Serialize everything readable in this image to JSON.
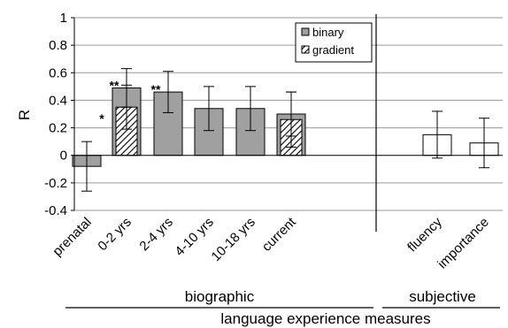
{
  "chart_data": {
    "type": "bar",
    "ylabel": "R",
    "ylim": [
      -0.4,
      1
    ],
    "yticks": [
      -0.4,
      -0.2,
      0,
      0.2,
      0.4,
      0.6,
      0.8,
      1
    ],
    "ytick_labels": [
      "-0.4",
      "-0.2",
      "0",
      "0.2",
      "0.4",
      "0.6",
      "0.8",
      "1"
    ],
    "grid": true,
    "legend_position": "top-right of left panel",
    "categories": [
      "prenatal",
      "0-2 yrs",
      "2-4 yrs",
      "4-10 yrs",
      "10-18 yrs",
      "current",
      "fluency",
      "importance"
    ],
    "series": [
      {
        "name": "binary",
        "color": "#a0a0a0",
        "pattern": "solid",
        "values": [
          -0.08,
          0.49,
          0.46,
          0.34,
          0.34,
          0.3,
          null,
          null
        ],
        "error": [
          0.18,
          0.14,
          0.15,
          0.16,
          0.16,
          0.16,
          null,
          null
        ]
      },
      {
        "name": "gradient",
        "color": "#ffffff",
        "pattern": "hatched",
        "values": [
          null,
          0.35,
          null,
          null,
          null,
          0.26,
          null,
          null
        ],
        "error": [
          null,
          0.16,
          null,
          null,
          null,
          0.2,
          null,
          null
        ]
      },
      {
        "color": "#ffffff",
        "pattern": "outline",
        "values": [
          null,
          null,
          null,
          null,
          null,
          null,
          0.15,
          0.09
        ],
        "error": [
          null,
          null,
          null,
          null,
          null,
          null,
          0.17,
          0.18
        ]
      }
    ],
    "annotations": [
      {
        "text": "**",
        "category": "0-2 yrs",
        "series": "binary"
      },
      {
        "text": "*",
        "category": "0-2 yrs",
        "series": "gradient"
      },
      {
        "text": "**",
        "category": "2-4 yrs",
        "series": "binary"
      }
    ],
    "groups": [
      {
        "label": "biographic",
        "categories": [
          "prenatal",
          "0-2 yrs",
          "2-4 yrs",
          "4-10 yrs",
          "10-18 yrs",
          "current"
        ]
      },
      {
        "label": "subjective",
        "categories": [
          "fluency",
          "importance"
        ]
      }
    ],
    "xlabel": "language experience measures"
  }
}
